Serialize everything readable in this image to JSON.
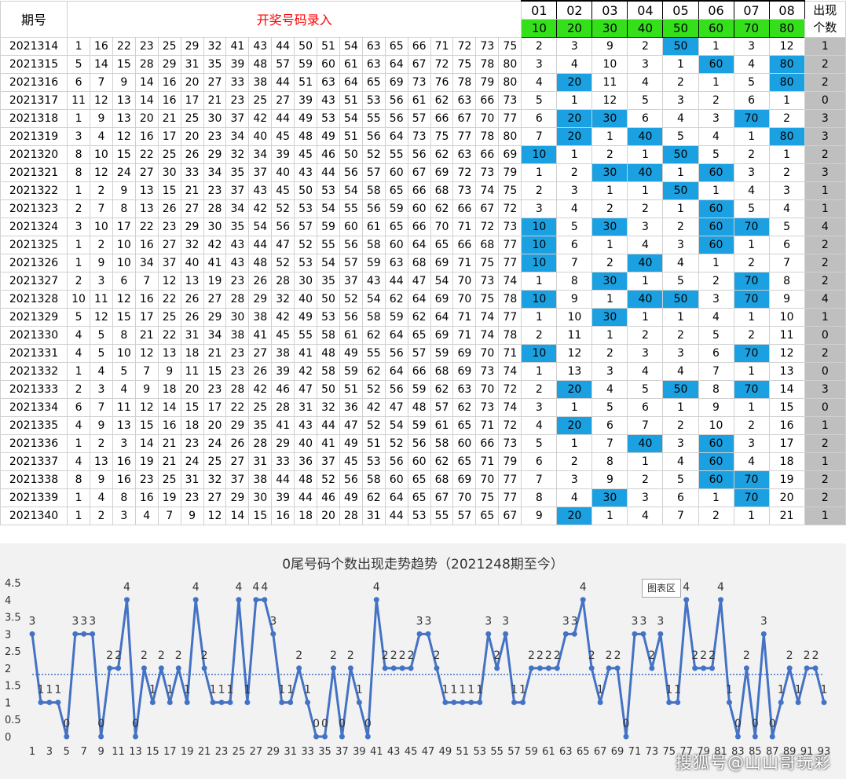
{
  "sheet": {
    "period_header": "期号",
    "input_header": "开奖号码录入",
    "tail_top": [
      "01",
      "02",
      "03",
      "04",
      "05",
      "06",
      "07",
      "08"
    ],
    "tail_bottom": [
      "10",
      "20",
      "30",
      "40",
      "50",
      "60",
      "70",
      "80"
    ],
    "count_header": [
      "出现",
      "个数"
    ],
    "rows": [
      {
        "period": "2021314",
        "nums": [
          1,
          16,
          22,
          23,
          25,
          29,
          32,
          41,
          43,
          44,
          50,
          51,
          54,
          63,
          65,
          66,
          71,
          72,
          73,
          75
        ],
        "tails": [
          2,
          3,
          9,
          2,
          50,
          1,
          3,
          12
        ],
        "count": 1
      },
      {
        "period": "2021315",
        "nums": [
          5,
          14,
          15,
          28,
          29,
          31,
          35,
          39,
          48,
          57,
          59,
          60,
          61,
          63,
          64,
          67,
          72,
          75,
          78,
          80
        ],
        "tails": [
          3,
          4,
          10,
          3,
          1,
          60,
          4,
          80
        ],
        "count": 2
      },
      {
        "period": "2021316",
        "nums": [
          6,
          7,
          9,
          14,
          16,
          20,
          27,
          33,
          38,
          44,
          51,
          63,
          64,
          65,
          69,
          73,
          76,
          78,
          79,
          80
        ],
        "tails": [
          4,
          20,
          11,
          4,
          2,
          1,
          5,
          80
        ],
        "count": 2
      },
      {
        "period": "2021317",
        "nums": [
          11,
          12,
          13,
          14,
          16,
          17,
          21,
          23,
          25,
          27,
          39,
          43,
          51,
          53,
          56,
          61,
          62,
          63,
          66,
          73
        ],
        "tails": [
          5,
          1,
          12,
          5,
          3,
          2,
          6,
          1
        ],
        "count": 0
      },
      {
        "period": "2021318",
        "nums": [
          1,
          9,
          13,
          20,
          21,
          25,
          30,
          37,
          42,
          44,
          49,
          53,
          54,
          55,
          56,
          57,
          66,
          67,
          70,
          77
        ],
        "tails": [
          6,
          20,
          30,
          6,
          4,
          3,
          70,
          2
        ],
        "count": 3
      },
      {
        "period": "2021319",
        "nums": [
          3,
          4,
          12,
          16,
          17,
          20,
          23,
          34,
          40,
          45,
          48,
          49,
          51,
          56,
          64,
          73,
          75,
          77,
          78,
          80
        ],
        "tails": [
          7,
          20,
          1,
          40,
          5,
          4,
          1,
          80
        ],
        "count": 3
      },
      {
        "period": "2021320",
        "nums": [
          8,
          10,
          15,
          22,
          25,
          26,
          29,
          32,
          34,
          39,
          45,
          46,
          50,
          52,
          55,
          56,
          62,
          63,
          66,
          69
        ],
        "tails": [
          10,
          1,
          2,
          1,
          50,
          5,
          2,
          1
        ],
        "count": 2
      },
      {
        "period": "2021321",
        "nums": [
          8,
          12,
          24,
          27,
          30,
          33,
          34,
          35,
          37,
          40,
          43,
          44,
          56,
          57,
          60,
          67,
          69,
          72,
          73,
          79
        ],
        "tails": [
          1,
          2,
          30,
          40,
          1,
          60,
          3,
          2
        ],
        "count": 3
      },
      {
        "period": "2021322",
        "nums": [
          1,
          2,
          9,
          13,
          15,
          21,
          23,
          37,
          43,
          45,
          50,
          53,
          54,
          58,
          65,
          66,
          68,
          73,
          74,
          75
        ],
        "tails": [
          2,
          3,
          1,
          1,
          50,
          1,
          4,
          3
        ],
        "count": 1
      },
      {
        "period": "2021323",
        "nums": [
          2,
          7,
          8,
          13,
          26,
          27,
          28,
          34,
          42,
          52,
          53,
          54,
          55,
          56,
          59,
          60,
          62,
          66,
          67,
          72
        ],
        "tails": [
          3,
          4,
          2,
          2,
          1,
          60,
          5,
          4
        ],
        "count": 1
      },
      {
        "period": "2021324",
        "nums": [
          3,
          10,
          17,
          22,
          23,
          29,
          30,
          35,
          54,
          56,
          57,
          59,
          60,
          61,
          65,
          66,
          70,
          71,
          72,
          73
        ],
        "tails": [
          10,
          5,
          30,
          3,
          2,
          60,
          70,
          5
        ],
        "count": 4
      },
      {
        "period": "2021325",
        "nums": [
          1,
          2,
          10,
          16,
          27,
          32,
          42,
          43,
          44,
          47,
          52,
          55,
          56,
          58,
          60,
          64,
          65,
          66,
          68,
          77
        ],
        "tails": [
          10,
          6,
          1,
          4,
          3,
          60,
          1,
          6
        ],
        "count": 2
      },
      {
        "period": "2021326",
        "nums": [
          1,
          9,
          10,
          34,
          37,
          40,
          41,
          43,
          48,
          52,
          53,
          54,
          57,
          59,
          63,
          68,
          69,
          71,
          75,
          77
        ],
        "tails": [
          10,
          7,
          2,
          40,
          4,
          1,
          2,
          7
        ],
        "count": 2
      },
      {
        "period": "2021327",
        "nums": [
          2,
          3,
          6,
          7,
          12,
          13,
          19,
          23,
          26,
          28,
          30,
          35,
          37,
          43,
          44,
          47,
          54,
          70,
          73,
          74
        ],
        "tails": [
          1,
          8,
          30,
          1,
          5,
          2,
          70,
          8
        ],
        "count": 2
      },
      {
        "period": "2021328",
        "nums": [
          10,
          11,
          12,
          16,
          22,
          26,
          27,
          28,
          29,
          32,
          40,
          50,
          52,
          54,
          62,
          64,
          69,
          70,
          75,
          78
        ],
        "tails": [
          10,
          9,
          1,
          40,
          50,
          3,
          70,
          9
        ],
        "count": 4
      },
      {
        "period": "2021329",
        "nums": [
          5,
          12,
          15,
          17,
          25,
          26,
          29,
          30,
          38,
          42,
          49,
          53,
          56,
          58,
          59,
          62,
          64,
          71,
          74,
          77
        ],
        "tails": [
          1,
          10,
          30,
          1,
          1,
          4,
          1,
          10
        ],
        "count": 1
      },
      {
        "period": "2021330",
        "nums": [
          4,
          5,
          8,
          21,
          22,
          31,
          34,
          38,
          41,
          45,
          55,
          58,
          61,
          62,
          64,
          65,
          69,
          71,
          74,
          78
        ],
        "tails": [
          2,
          11,
          1,
          2,
          2,
          5,
          2,
          11
        ],
        "count": 0
      },
      {
        "period": "2021331",
        "nums": [
          4,
          5,
          10,
          12,
          13,
          18,
          21,
          23,
          27,
          38,
          41,
          48,
          49,
          55,
          56,
          57,
          59,
          69,
          70,
          71
        ],
        "tails": [
          10,
          12,
          2,
          3,
          3,
          6,
          70,
          12
        ],
        "count": 2
      },
      {
        "period": "2021332",
        "nums": [
          1,
          4,
          5,
          7,
          9,
          11,
          15,
          23,
          26,
          39,
          42,
          58,
          59,
          62,
          64,
          66,
          68,
          69,
          73,
          74
        ],
        "tails": [
          1,
          13,
          3,
          4,
          4,
          7,
          1,
          13
        ],
        "count": 0
      },
      {
        "period": "2021333",
        "nums": [
          2,
          3,
          4,
          9,
          18,
          20,
          23,
          28,
          42,
          46,
          47,
          50,
          51,
          52,
          56,
          59,
          62,
          63,
          70,
          72
        ],
        "tails": [
          2,
          20,
          4,
          5,
          50,
          8,
          70,
          14
        ],
        "count": 3
      },
      {
        "period": "2021334",
        "nums": [
          6,
          7,
          11,
          12,
          14,
          15,
          17,
          22,
          25,
          28,
          31,
          32,
          36,
          42,
          47,
          48,
          57,
          62,
          73,
          74
        ],
        "tails": [
          3,
          1,
          5,
          6,
          1,
          9,
          1,
          15
        ],
        "count": 0
      },
      {
        "period": "2021335",
        "nums": [
          4,
          9,
          13,
          15,
          16,
          18,
          20,
          29,
          35,
          41,
          43,
          44,
          47,
          52,
          54,
          59,
          61,
          65,
          71,
          72
        ],
        "tails": [
          4,
          20,
          6,
          7,
          2,
          10,
          2,
          16
        ],
        "count": 1
      },
      {
        "period": "2021336",
        "nums": [
          1,
          2,
          3,
          14,
          21,
          23,
          24,
          26,
          28,
          29,
          40,
          41,
          49,
          51,
          52,
          56,
          58,
          60,
          66,
          73
        ],
        "tails": [
          5,
          1,
          7,
          40,
          3,
          60,
          3,
          17
        ],
        "count": 2
      },
      {
        "period": "2021337",
        "nums": [
          4,
          13,
          16,
          19,
          21,
          24,
          25,
          27,
          31,
          33,
          36,
          37,
          45,
          53,
          56,
          60,
          62,
          65,
          71,
          79
        ],
        "tails": [
          6,
          2,
          8,
          1,
          4,
          60,
          4,
          18
        ],
        "count": 1
      },
      {
        "period": "2021338",
        "nums": [
          8,
          9,
          16,
          23,
          25,
          31,
          32,
          37,
          38,
          44,
          48,
          52,
          56,
          58,
          60,
          65,
          68,
          69,
          70,
          77
        ],
        "tails": [
          7,
          3,
          9,
          2,
          5,
          60,
          70,
          19
        ],
        "count": 2
      },
      {
        "period": "2021339",
        "nums": [
          1,
          4,
          8,
          16,
          19,
          23,
          27,
          29,
          30,
          39,
          44,
          46,
          49,
          62,
          64,
          65,
          67,
          70,
          75,
          77
        ],
        "tails": [
          8,
          4,
          30,
          3,
          6,
          1,
          70,
          20
        ],
        "count": 2
      },
      {
        "period": "2021340",
        "nums": [
          1,
          2,
          3,
          4,
          7,
          9,
          12,
          14,
          15,
          16,
          18,
          20,
          28,
          31,
          44,
          53,
          55,
          57,
          65,
          67
        ],
        "tails": [
          9,
          20,
          1,
          4,
          7,
          2,
          1,
          21
        ],
        "count": 1
      }
    ]
  },
  "chart": {
    "title": "0尾号码个数出现走势趋势（2021248期至今）",
    "area_button": "图表区",
    "watermark": "搜狐号@山山哥玩彩"
  },
  "chart_data": {
    "type": "line",
    "title": "0尾号码个数出现走势趋势（2021248期至今）",
    "x": [
      1,
      2,
      3,
      4,
      5,
      6,
      7,
      8,
      9,
      10,
      11,
      12,
      13,
      14,
      15,
      16,
      17,
      18,
      19,
      20,
      21,
      22,
      23,
      24,
      25,
      26,
      27,
      28,
      29,
      30,
      31,
      32,
      33,
      34,
      35,
      36,
      37,
      38,
      39,
      40,
      41,
      42,
      43,
      44,
      45,
      46,
      47,
      48,
      49,
      50,
      51,
      52,
      53,
      54,
      55,
      56,
      57,
      58,
      59,
      60,
      61,
      62,
      63,
      64,
      65,
      66,
      67,
      68,
      69,
      70,
      71,
      72,
      73,
      74,
      75,
      76,
      77,
      78,
      79,
      80,
      81,
      82,
      83,
      84,
      85,
      86,
      87,
      88,
      89,
      90,
      91,
      92,
      93
    ],
    "x_tick_labels": [
      "1",
      "3",
      "5",
      "7",
      "9",
      "11",
      "13",
      "15",
      "17",
      "19",
      "21",
      "23",
      "25",
      "27",
      "29",
      "31",
      "33",
      "35",
      "37",
      "39",
      "41",
      "43",
      "45",
      "47",
      "49",
      "51",
      "53",
      "55",
      "57",
      "59",
      "61",
      "63",
      "65",
      "67",
      "69",
      "71",
      "73",
      "75",
      "77",
      "79",
      "81",
      "83",
      "85",
      "87",
      "89",
      "91",
      "93"
    ],
    "series": [
      {
        "values": [
          3,
          1,
          1,
          1,
          0,
          3,
          3,
          3,
          0,
          2,
          2,
          4,
          0,
          2,
          1,
          2,
          1,
          2,
          1,
          4,
          2,
          1,
          1,
          1,
          4,
          1,
          4,
          4,
          3,
          1,
          1,
          2,
          1,
          0,
          0,
          2,
          0,
          2,
          1,
          0,
          4,
          2,
          2,
          2,
          2,
          3,
          3,
          2,
          1,
          1,
          1,
          1,
          1,
          3,
          2,
          3,
          1,
          1,
          2,
          2,
          2,
          2,
          3,
          3,
          4,
          2,
          1,
          2,
          2,
          0,
          3,
          3,
          2,
          3,
          1,
          1,
          4,
          2,
          2,
          2,
          4,
          1,
          0,
          2,
          0,
          3,
          0,
          1,
          2,
          1,
          2,
          2,
          1
        ]
      }
    ],
    "mean_line": 1.82,
    "ylim": [
      0,
      4.5
    ],
    "y_ticks": [
      "0",
      "0.5",
      "1",
      "1.5",
      "2",
      "2.5",
      "3",
      "3.5",
      "4",
      "4.5"
    ],
    "colors": {
      "line": "#4472c4",
      "mean": "#4472c4"
    },
    "data_labels": true,
    "grid": false
  }
}
